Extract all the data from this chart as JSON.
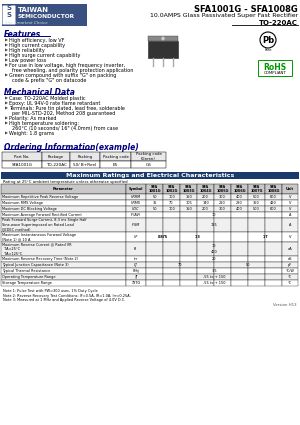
{
  "title1": "SFA1001G - SFA1008G",
  "title2": "10.0AMPS Glass Passivated Super Fast Rectifier",
  "title3": "TO-220AC",
  "logo_text1": "TAIWAN",
  "logo_text2": "SEMICONDUCTOR",
  "logo_text3": "The Smartest Choice",
  "features_title": "Features",
  "mechanical_title": "Mechanical Data",
  "ordering_title": "Ordering Information(example)",
  "table_title": "Maximum Ratings and Electrical Characteristics",
  "table_subtitle": "Rating at 25°C ambient temperature unless otherwise specified",
  "notes": [
    "Note 1: Pulse Test with PW=300 usec, 1% Duty Cycle",
    "Note 2: Reverse Recovery Test Conditions: IF=0.5A, IR=1.0A, Irr=0.25A.",
    "Note 3: Measured at 1 MHz and Applied Reverse Voltage of 4.0V D.C."
  ],
  "version": "Version H13",
  "bg_color": "#ffffff",
  "header_bg": "#1a3a6b",
  "logo_bg": "#3a5080",
  "logo_bg2": "#8899bb",
  "section_title_color": "#000080"
}
